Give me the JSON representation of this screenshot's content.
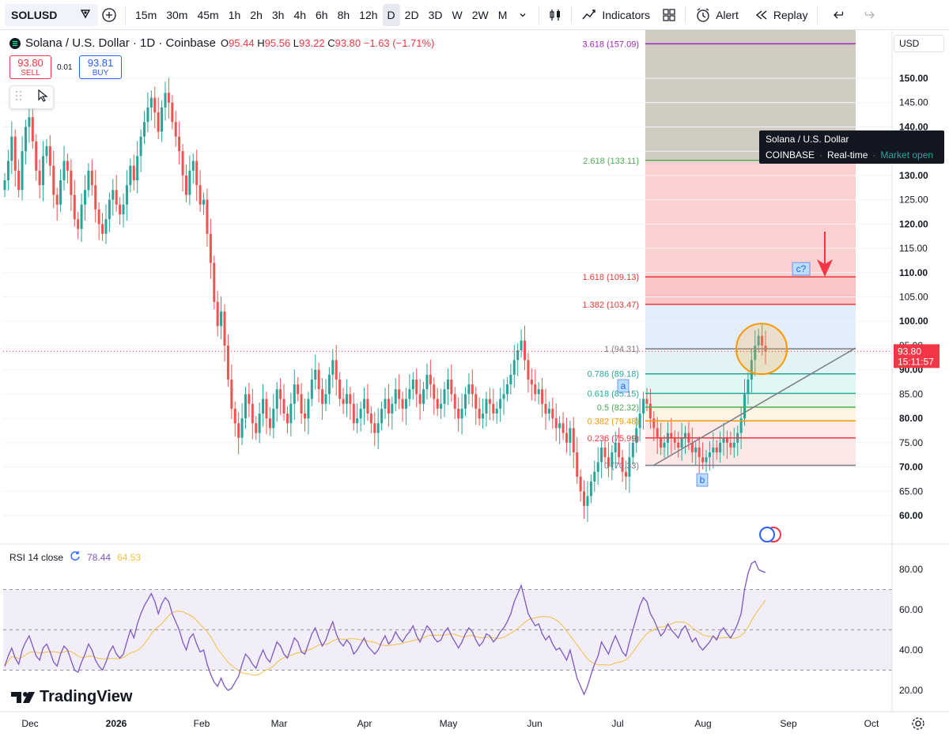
{
  "toolbar": {
    "symbol": "SOLUSD",
    "timeframes": [
      "15m",
      "30m",
      "45m",
      "1h",
      "2h",
      "3h",
      "4h",
      "6h",
      "8h",
      "12h",
      "D",
      "2D",
      "3D",
      "W",
      "2W",
      "M"
    ],
    "active_timeframe": "D",
    "indicators_label": "Indicators",
    "alert_label": "Alert",
    "replay_label": "Replay"
  },
  "legend": {
    "title": "Solana / U.S. Dollar · 1D · Coinbase",
    "o_label": "O",
    "o": "95.44",
    "h_label": "H",
    "h": "95.56",
    "l_label": "L",
    "l": "93.22",
    "c_label": "C",
    "c": "93.80",
    "change": "−1.63 (−1.71%)"
  },
  "trade": {
    "sell_price": "93.80",
    "sell_label": "SELL",
    "spread": "0.01",
    "buy_price": "93.81",
    "buy_label": "BUY"
  },
  "tooltip": {
    "name": "Solana / U.S. Dollar",
    "exchange": "COINBASE",
    "sep": "·",
    "realtime": "Real-time",
    "market": "Market open"
  },
  "price_axis": {
    "currency": "USD",
    "ticks": [
      "150.00",
      "145.00",
      "140.00",
      "135.00",
      "130.00",
      "125.00",
      "120.00",
      "115.00",
      "110.00",
      "105.00",
      "100.00",
      "95.00",
      "90.00",
      "85.00",
      "80.00",
      "75.00",
      "70.00",
      "65.00",
      "60.00"
    ],
    "current_price": "93.80",
    "countdown": "15:11:57"
  },
  "fib_levels": [
    {
      "label": "3.618 (157.09)",
      "price": 157.09,
      "color": "#9c27b0"
    },
    {
      "label": "2.618 (133.11)",
      "price": 133.11,
      "color": "#4caf50"
    },
    {
      "label": "1.618 (109.13)",
      "price": 109.13,
      "color": "#e53935"
    },
    {
      "label": "1.382 (103.47)",
      "price": 103.47,
      "color": "#e53935"
    },
    {
      "label": "1 (94.31)",
      "price": 94.31,
      "color": "#787b86"
    },
    {
      "label": "0.786 (89.18)",
      "price": 89.18,
      "color": "#26a69a"
    },
    {
      "label": "0.618 (85.15)",
      "price": 85.15,
      "color": "#22ab94"
    },
    {
      "label": "0.5 (82.32)",
      "price": 82.32,
      "color": "#4caf50"
    },
    {
      "label": "0.382 (79.48)",
      "price": 79.48,
      "color": "#ff9800"
    },
    {
      "label": "0.236 (75.99)",
      "price": 75.99,
      "color": "#f23645"
    },
    {
      "label": "0 (70.33)",
      "price": 70.33,
      "color": "#787b86"
    }
  ],
  "wave_labels": {
    "a": "a",
    "b": "b",
    "c": "c?"
  },
  "rsi": {
    "title": "RSI 14 close",
    "value": "78.44",
    "ma": "64.53",
    "ticks": [
      "80.00",
      "60.00",
      "40.00",
      "20.00"
    ]
  },
  "time_axis": [
    "Dec",
    "2026",
    "Feb",
    "Mar",
    "Apr",
    "May",
    "Jun",
    "Jul",
    "Aug",
    "Sep",
    "Oct"
  ],
  "watermark": "TradingView",
  "colors": {
    "up": "#26a69a",
    "down": "#ef5350",
    "accent": "#2962ff"
  },
  "chart_data": {
    "type": "candlestick",
    "series": [
      {
        "name": "SOLUSD",
        "close": [
          129,
          133,
          138,
          131,
          127,
          135,
          140,
          142,
          137,
          131,
          128,
          134,
          136,
          132,
          126,
          124,
          129,
          133,
          131,
          126,
          121,
          119,
          124,
          127,
          131,
          128,
          123,
          120,
          118,
          121,
          125,
          127,
          124,
          122,
          124,
          128,
          132,
          129,
          134,
          138,
          141,
          144,
          146,
          143,
          139,
          144,
          147,
          145,
          141,
          138,
          135,
          130,
          126,
          131,
          133,
          128,
          124,
          125,
          118,
          112,
          104,
          99,
          102,
          95,
          88,
          82,
          79,
          76,
          80,
          85,
          83,
          79,
          77,
          81,
          84,
          80,
          78,
          82,
          86,
          84,
          81,
          79,
          83,
          87,
          85,
          81,
          80,
          84,
          88,
          90,
          86,
          83,
          85,
          89,
          92,
          88,
          84,
          83,
          85,
          83,
          79,
          80,
          82,
          84,
          81,
          79,
          77,
          79,
          82,
          84,
          81,
          83,
          86,
          84,
          82,
          84,
          86,
          88,
          85,
          83,
          86,
          89,
          87,
          84,
          82,
          83,
          86,
          88,
          85,
          82,
          80,
          82,
          85,
          87,
          85,
          82,
          80,
          81,
          84,
          83,
          81,
          82,
          84,
          85,
          87,
          89,
          92,
          94,
          96,
          92,
          88,
          87,
          85,
          86,
          83,
          81,
          82,
          80,
          78,
          79,
          77,
          75,
          78,
          73,
          68,
          65,
          62,
          64,
          67,
          69,
          71,
          74,
          72,
          70,
          73,
          75,
          72,
          69,
          68,
          72,
          75,
          78,
          81,
          84,
          83,
          80,
          78,
          76,
          74,
          75,
          77,
          76,
          75,
          74,
          76,
          77,
          75,
          73,
          74,
          72,
          71,
          72,
          73,
          74,
          73,
          75,
          76,
          75,
          74,
          75,
          77,
          80,
          85,
          88,
          92,
          95,
          97,
          95,
          93.8
        ],
        "rsi": [
          32,
          37,
          41,
          36,
          33,
          40,
          44,
          47,
          42,
          37,
          35,
          41,
          43,
          39,
          34,
          32,
          38,
          42,
          40,
          35,
          30,
          29,
          34,
          38,
          43,
          40,
          35,
          32,
          30,
          34,
          39,
          42,
          38,
          36,
          38,
          44,
          50,
          46,
          53,
          58,
          62,
          65,
          68,
          64,
          58,
          63,
          66,
          64,
          58,
          54,
          50,
          44,
          40,
          46,
          48,
          43,
          39,
          40,
          33,
          28,
          24,
          22,
          26,
          22,
          20,
          21,
          24,
          27,
          33,
          38,
          36,
          33,
          31,
          36,
          40,
          36,
          34,
          39,
          44,
          42,
          38,
          36,
          41,
          46,
          44,
          39,
          38,
          43,
          48,
          51,
          46,
          42,
          45,
          50,
          54,
          48,
          44,
          42,
          45,
          43,
          38,
          40,
          43,
          46,
          42,
          40,
          38,
          40,
          44,
          47,
          43,
          45,
          49,
          46,
          44,
          47,
          49,
          52,
          47,
          44,
          48,
          52,
          50,
          46,
          44,
          45,
          49,
          51,
          47,
          44,
          41,
          44,
          48,
          51,
          49,
          45,
          42,
          44,
          48,
          47,
          44,
          46,
          49,
          51,
          54,
          58,
          64,
          68,
          72,
          65,
          58,
          55,
          52,
          53,
          48,
          45,
          47,
          43,
          40,
          41,
          38,
          35,
          40,
          33,
          26,
          22,
          18,
          22,
          28,
          33,
          37,
          44,
          41,
          38,
          43,
          47,
          43,
          39,
          37,
          44,
          50,
          56,
          62,
          66,
          64,
          58,
          55,
          51,
          47,
          49,
          53,
          50,
          48,
          46,
          50,
          52,
          48,
          44,
          46,
          42,
          40,
          42,
          44,
          47,
          45,
          49,
          51,
          48,
          46,
          49,
          53,
          58,
          70,
          78,
          83,
          84,
          80,
          79,
          78.44
        ]
      }
    ],
    "xlabels": [
      "Dec",
      "2026",
      "Feb",
      "Mar",
      "Apr",
      "May",
      "Jun",
      "Jul",
      "Aug",
      "Sep",
      "Oct"
    ],
    "ylim": [
      57,
      160
    ],
    "rsi_ylim": [
      10,
      90
    ]
  }
}
